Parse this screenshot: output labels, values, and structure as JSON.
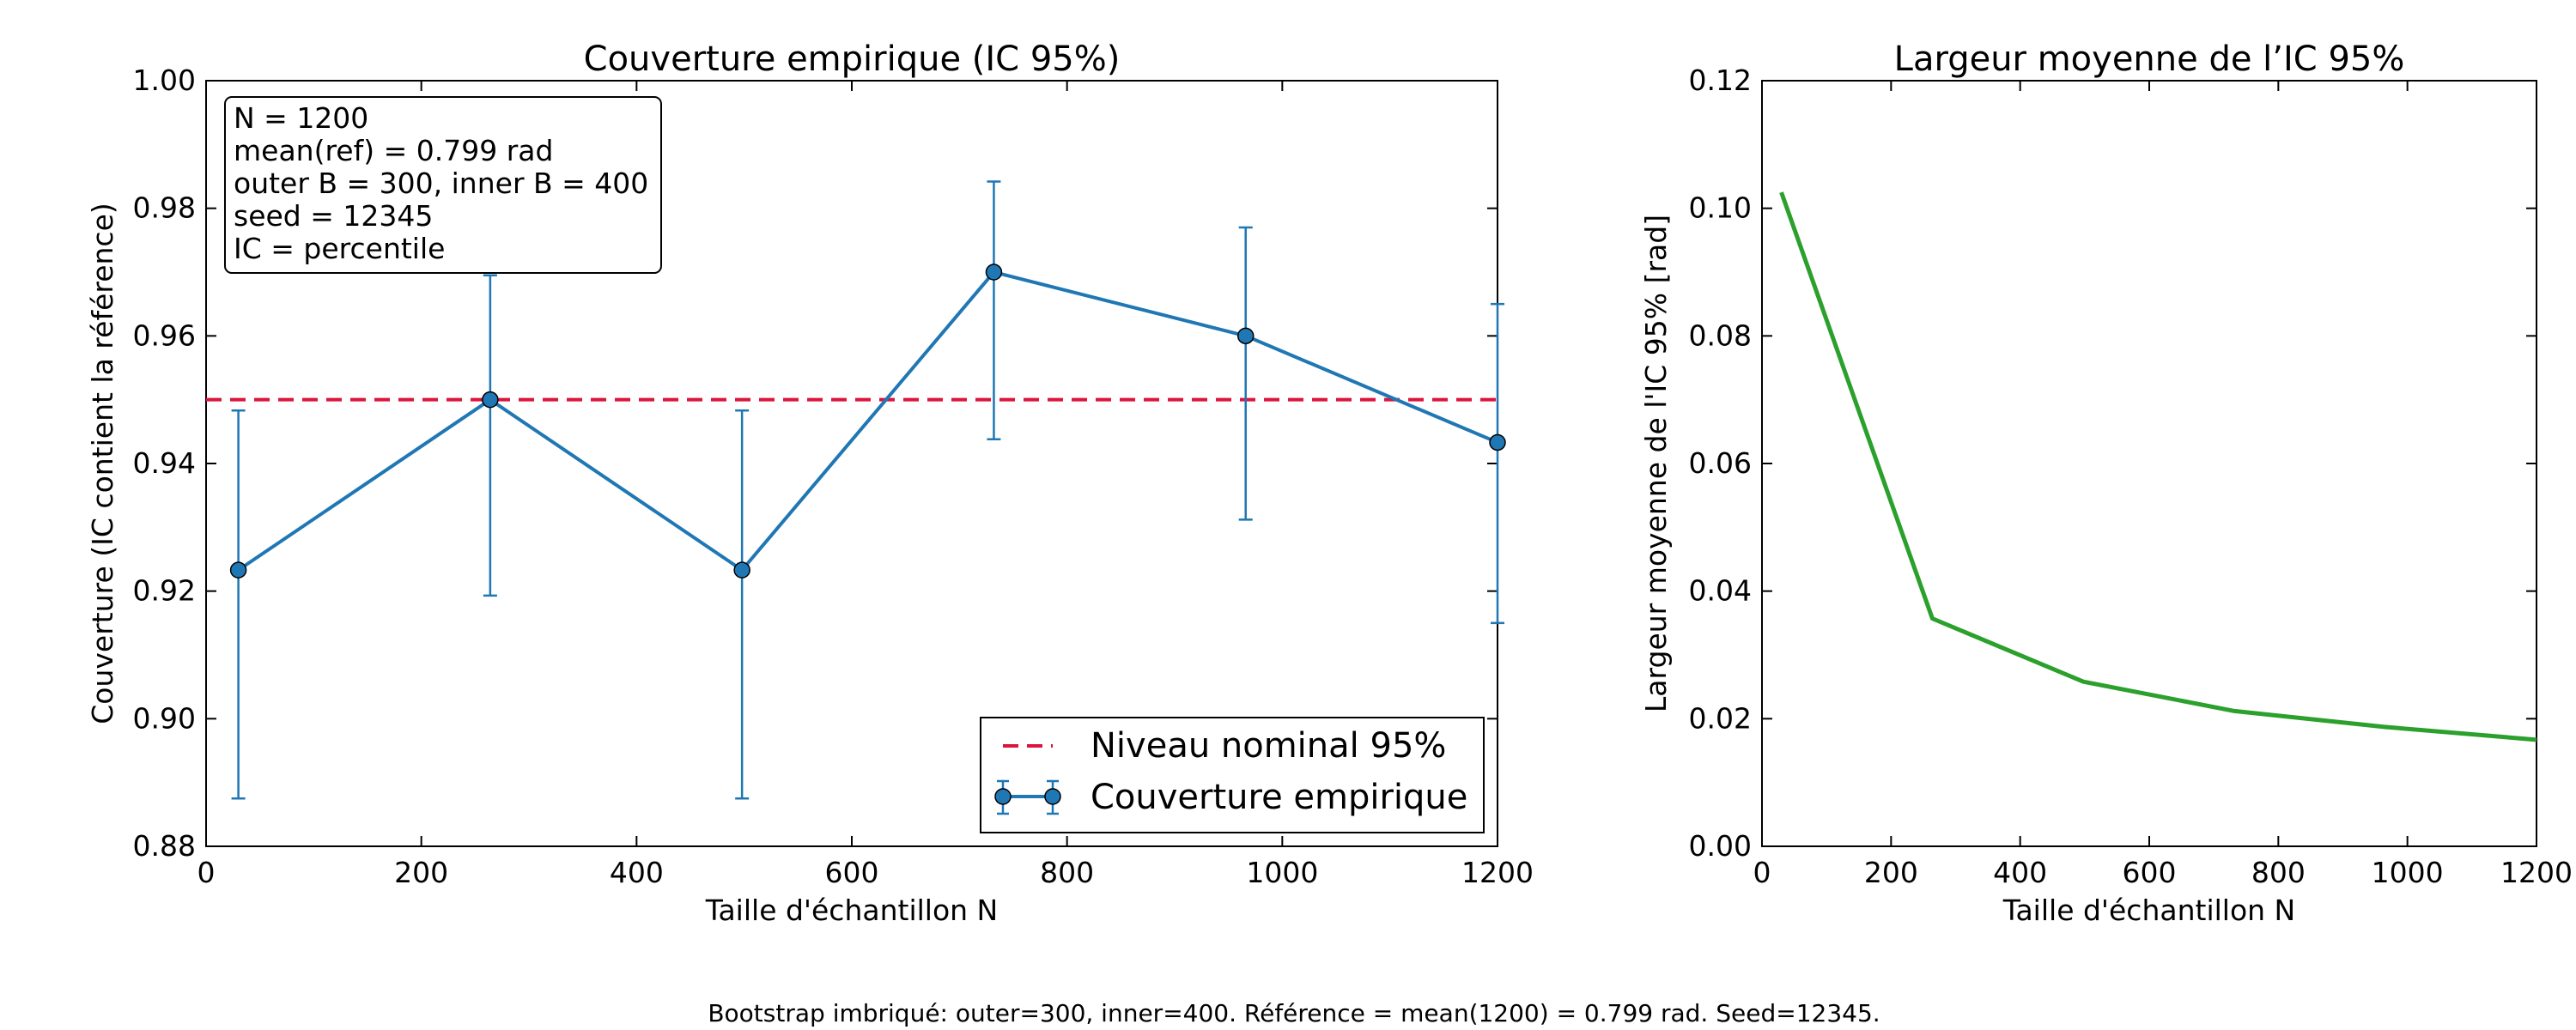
{
  "caption": "Bootstrap imbriqué: outer=300, inner=400. Référence = mean(1200) = 0.799 rad. Seed=12345.",
  "colors": {
    "coverage": "#1f77b4",
    "nominal": "#dc143c",
    "width": "#2ca02c"
  },
  "chart_data": [
    {
      "type": "line",
      "title": "Couverture empirique (IC 95%)",
      "xlabel": "Taille d'échantillon N",
      "ylabel": "Couverture (IC contient la référence)",
      "xlim": [
        0,
        1200
      ],
      "ylim": [
        0.88,
        1.0
      ],
      "xticks": [
        0,
        200,
        400,
        600,
        800,
        1000,
        1200
      ],
      "yticks": [
        0.88,
        0.9,
        0.92,
        0.94,
        0.96,
        0.98,
        1.0
      ],
      "grid": false,
      "legend_position": "bottom-right",
      "reference_line": {
        "name": "Niveau nominal 95%",
        "y": 0.95,
        "style": "dashed"
      },
      "series": [
        {
          "name": "Couverture empirique",
          "x": [
            30,
            264,
            498,
            732,
            966,
            1200
          ],
          "y": [
            0.9233,
            0.95,
            0.9233,
            0.97,
            0.96,
            0.9433
          ],
          "err_low": [
            0.8875,
            0.9193,
            0.8875,
            0.9438,
            0.9312,
            0.915
          ],
          "err_high": [
            0.9483,
            0.9695,
            0.9483,
            0.9842,
            0.977,
            0.965
          ]
        }
      ],
      "annotation": [
        "N = 1200",
        "mean(ref) = 0.799 rad",
        "outer B = 300, inner B = 400",
        "seed = 12345",
        "IC = percentile"
      ]
    },
    {
      "type": "line",
      "title": "Largeur moyenne de l’IC 95%",
      "xlabel": "Taille d'échantillon N",
      "ylabel": "Largeur moyenne de l'IC 95% [rad]",
      "xlim": [
        0,
        1200
      ],
      "ylim": [
        0.0,
        0.12
      ],
      "xticks": [
        0,
        200,
        400,
        600,
        800,
        1000,
        1200
      ],
      "yticks": [
        0.0,
        0.02,
        0.04,
        0.06,
        0.08,
        0.1,
        0.12
      ],
      "grid": false,
      "series": [
        {
          "x": [
            30,
            264,
            498,
            732,
            966,
            1200
          ],
          "y": [
            0.1025,
            0.0357,
            0.0258,
            0.0212,
            0.0187,
            0.0167
          ]
        }
      ]
    }
  ]
}
